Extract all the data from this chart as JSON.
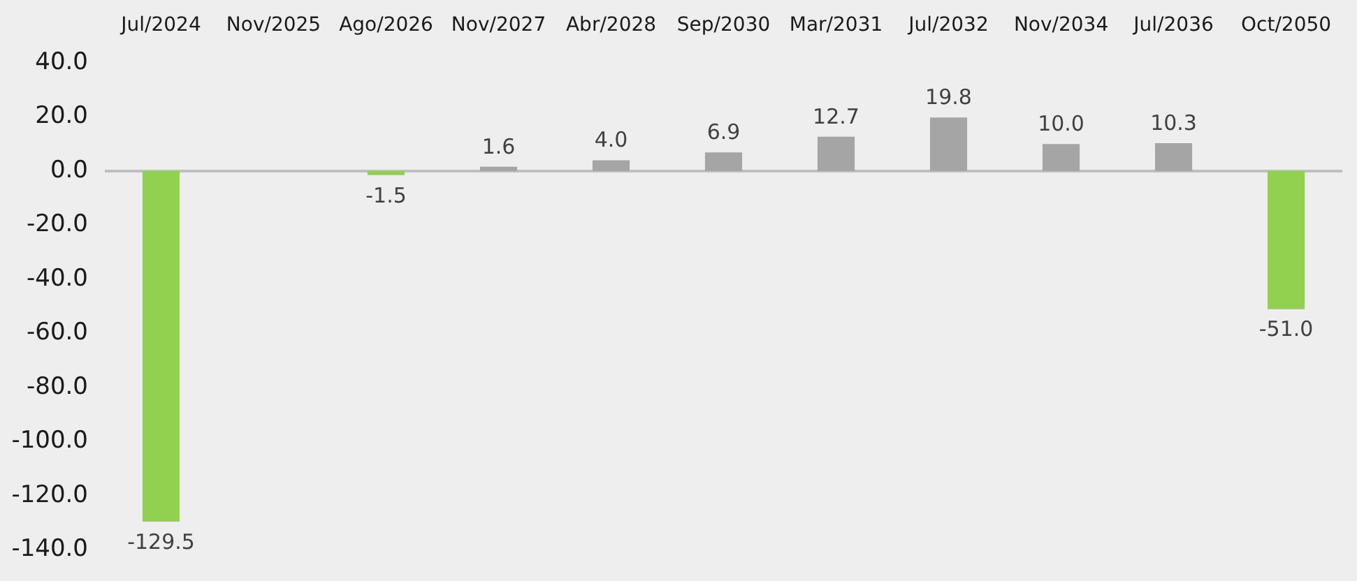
{
  "chart_data": {
    "type": "bar",
    "categories": [
      "Jul/2024",
      "Nov/2025",
      "Ago/2026",
      "Nov/2027",
      "Abr/2028",
      "Sep/2030",
      "Mar/2031",
      "Jul/2032",
      "Nov/2034",
      "Jul/2036",
      "Oct/2050"
    ],
    "values": [
      -129.5,
      null,
      -1.5,
      1.6,
      4.0,
      6.9,
      12.7,
      19.8,
      10.0,
      10.3,
      -51.0
    ],
    "colors": [
      "#92d050",
      null,
      "#92d050",
      "#a5a5a5",
      "#a5a5a5",
      "#a5a5a5",
      "#a5a5a5",
      "#a5a5a5",
      "#a5a5a5",
      "#a5a5a5",
      "#92d050"
    ],
    "value_labels": [
      "-129.5",
      null,
      "-1.5",
      "1.6",
      "4.0",
      "6.9",
      "12.7",
      "19.8",
      "10.0",
      "10.3",
      "-51.0"
    ],
    "ylim": [
      -140,
      40
    ],
    "yticks": [
      {
        "value": -140,
        "label": "-140.0"
      },
      {
        "value": -120,
        "label": "-120.0"
      },
      {
        "value": -100,
        "label": "-100.0"
      },
      {
        "value": -80,
        "label": "-80.0"
      },
      {
        "value": -60,
        "label": "-60.0"
      },
      {
        "value": -40,
        "label": "-40.0"
      },
      {
        "value": -20,
        "label": "-20.0"
      },
      {
        "value": 0,
        "label": "0.0"
      },
      {
        "value": 20,
        "label": "20.0"
      },
      {
        "value": 40,
        "label": "40.0"
      }
    ],
    "ref_lines": [
      {
        "axis": "y",
        "value": 0,
        "color": "#bfbfbf"
      }
    ],
    "grid": false,
    "legend": false
  }
}
